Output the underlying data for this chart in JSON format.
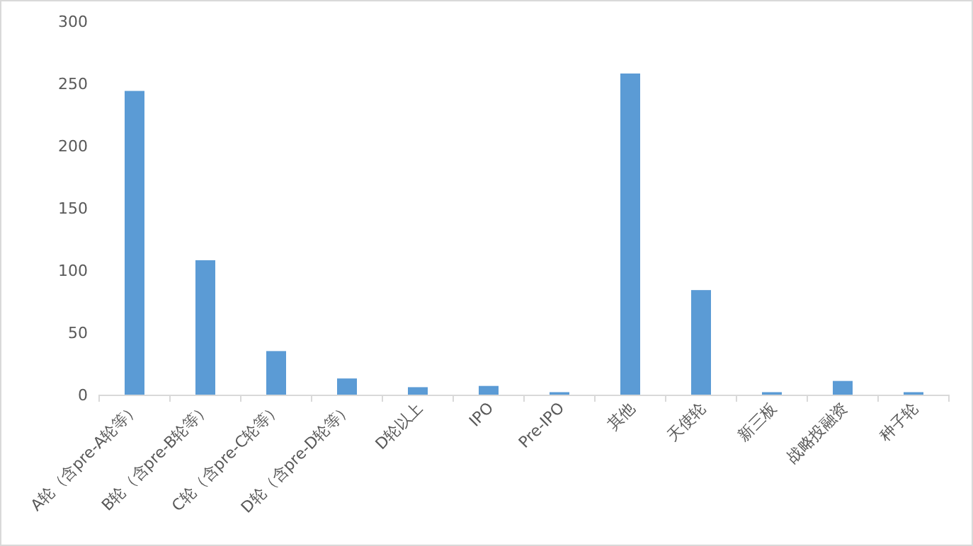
{
  "chart_data": {
    "type": "bar",
    "categories": [
      "A轮（含pre-A轮等）",
      "B轮（含pre-B轮等）",
      "C轮（含pre-C轮等）",
      "D轮（含pre-D轮等）",
      "D轮以上",
      "IPO",
      "Pre-IPO",
      "其他",
      "天使轮",
      "新三板",
      "战略投融资",
      "种子轮"
    ],
    "values": [
      244,
      108,
      35,
      13,
      6,
      7,
      2,
      258,
      84,
      2,
      11,
      2
    ],
    "color": "#5b9bd5",
    "ylim": [
      0,
      300
    ],
    "yticks": [
      0,
      50,
      100,
      150,
      200,
      250,
      300
    ],
    "grid": false
  }
}
